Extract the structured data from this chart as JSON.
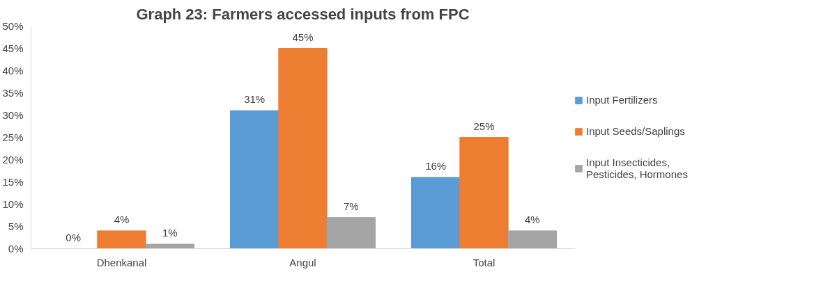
{
  "chart_data": {
    "type": "bar",
    "title": "Graph 23: Farmers accessed inputs from FPC",
    "categories": [
      "Dhenkanal",
      "Angul",
      "Total"
    ],
    "series": [
      {
        "name": "Input Fertilizers",
        "color": "#5b9bd5",
        "values": [
          0,
          31,
          16
        ],
        "value_labels": [
          "0%",
          "31%",
          "16%"
        ]
      },
      {
        "name": "Input Seeds/Saplings",
        "color": "#ed7d31",
        "values": [
          4,
          45,
          25
        ],
        "value_labels": [
          "4%",
          "45%",
          "25%"
        ]
      },
      {
        "name": "Input Insecticides, Pesticides, Hormones",
        "color": "#a5a5a5",
        "values": [
          1,
          7,
          4
        ],
        "value_labels": [
          "1%",
          "7%",
          "4%"
        ]
      }
    ],
    "ylim": [
      0,
      50
    ],
    "yticks": [
      {
        "value": 0,
        "label": "0%"
      },
      {
        "value": 5,
        "label": "5%"
      },
      {
        "value": 10,
        "label": "10%"
      },
      {
        "value": 15,
        "label": "15%"
      },
      {
        "value": 20,
        "label": "20%"
      },
      {
        "value": 25,
        "label": "25%"
      },
      {
        "value": 30,
        "label": "30%"
      },
      {
        "value": 35,
        "label": "35%"
      },
      {
        "value": 40,
        "label": "40%"
      },
      {
        "value": 45,
        "label": "45%"
      },
      {
        "value": 50,
        "label": "50%"
      }
    ],
    "grid": false,
    "legend": "right"
  }
}
